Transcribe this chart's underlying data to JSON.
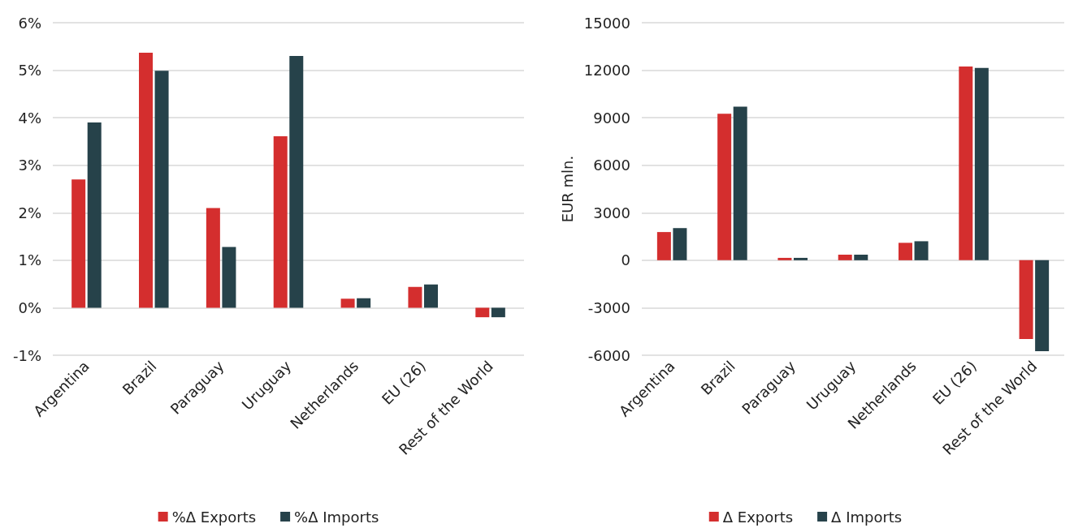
{
  "chart_data": [
    {
      "type": "bar",
      "categories": [
        "Argentina",
        "Brazil",
        "Paraguay",
        "Uruguay",
        "Netherlands",
        "EU (26)",
        "Rest of the World"
      ],
      "series": [
        {
          "name": "%Δ Exports",
          "color": "#d42e2e",
          "values": [
            2.7,
            5.37,
            2.1,
            3.61,
            0.19,
            0.44,
            -0.2
          ]
        },
        {
          "name": "%Δ Imports",
          "color": "#26424a",
          "values": [
            3.9,
            4.99,
            1.28,
            5.3,
            0.2,
            0.49,
            -0.2
          ]
        }
      ],
      "ylim": [
        -1,
        6
      ],
      "yticks": [
        {
          "value": -1,
          "label": "-1%"
        },
        {
          "value": 0,
          "label": "0%"
        },
        {
          "value": 1,
          "label": "1%"
        },
        {
          "value": 2,
          "label": "2%"
        },
        {
          "value": 3,
          "label": "3%"
        },
        {
          "value": 4,
          "label": "4%"
        },
        {
          "value": 5,
          "label": "5%"
        },
        {
          "value": 6,
          "label": "6%"
        }
      ],
      "grid": "y",
      "legend": "bottom"
    },
    {
      "type": "bar",
      "ylabel": "EUR mln.",
      "categories": [
        "Argentina",
        "Brazil",
        "Paraguay",
        "Uruguay",
        "Netherlands",
        "EU (26)",
        "Rest of the World"
      ],
      "series": [
        {
          "name": "Δ Exports",
          "color": "#d42e2e",
          "values": [
            1780,
            9250,
            150,
            350,
            1100,
            12240,
            -4980
          ]
        },
        {
          "name": "Δ Imports",
          "color": "#26424a",
          "values": [
            2030,
            9700,
            150,
            350,
            1200,
            12140,
            -5740
          ]
        }
      ],
      "ylim": [
        -6000,
        15000
      ],
      "yticks": [
        -6000,
        -3000,
        0,
        3000,
        6000,
        9000,
        12000,
        15000
      ],
      "grid": "y",
      "legend": "bottom"
    }
  ]
}
